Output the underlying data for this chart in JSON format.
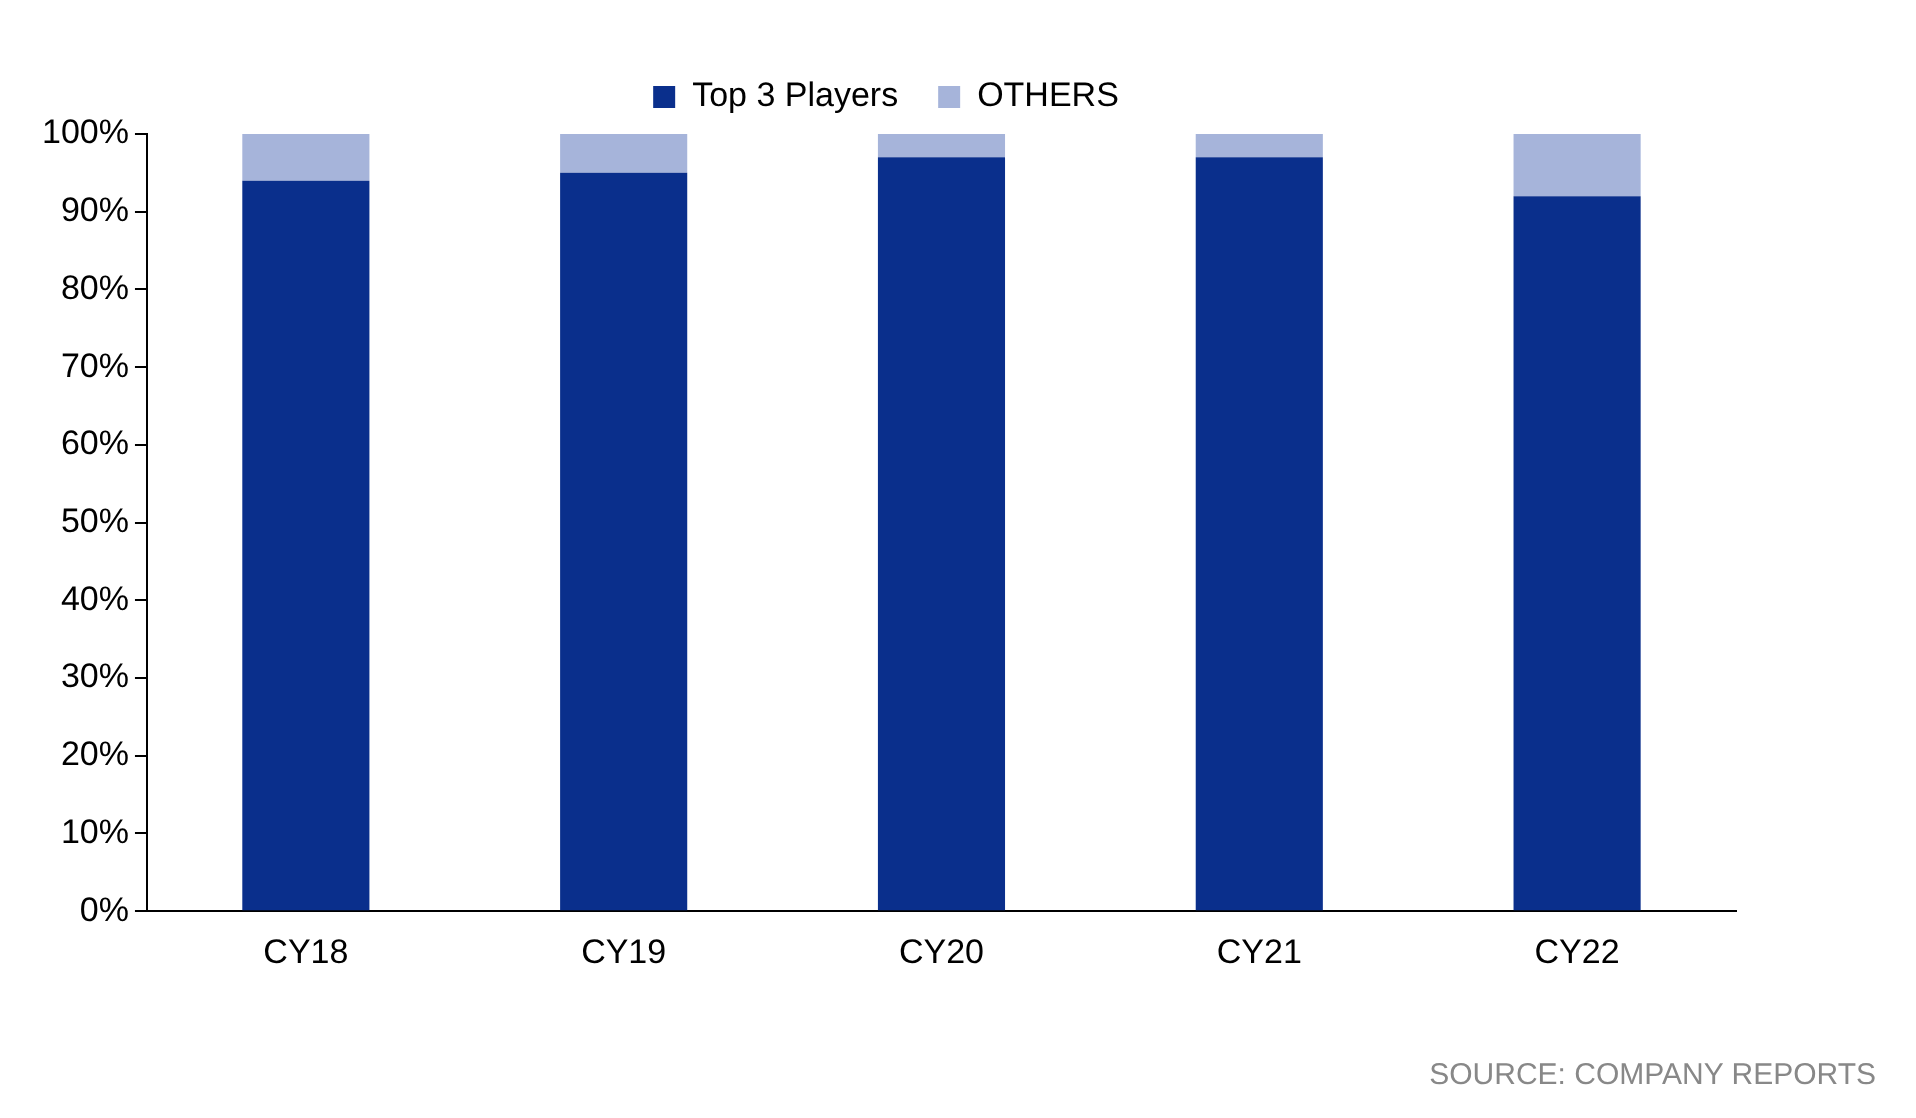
{
  "chart_data": {
    "type": "bar",
    "stacked": true,
    "categories": [
      "CY18",
      "CY19",
      "CY20",
      "CY21",
      "CY22"
    ],
    "series": [
      {
        "name": "Top 3 Players",
        "color": "#0a2f8c",
        "values": [
          94,
          95,
          97,
          97,
          92
        ]
      },
      {
        "name": "OTHERS",
        "color": "#a6b4da",
        "values": [
          6,
          5,
          3,
          3,
          8
        ]
      }
    ],
    "ylim": [
      0,
      100
    ],
    "yticks": [
      {
        "value": 0,
        "label": "0%"
      },
      {
        "value": 10,
        "label": "10%"
      },
      {
        "value": 20,
        "label": "20%"
      },
      {
        "value": 30,
        "label": "30%"
      },
      {
        "value": 40,
        "label": "40%"
      },
      {
        "value": 50,
        "label": "50%"
      },
      {
        "value": 60,
        "label": "60%"
      },
      {
        "value": 70,
        "label": "70%"
      },
      {
        "value": 80,
        "label": "80%"
      },
      {
        "value": 90,
        "label": "90%"
      },
      {
        "value": 100,
        "label": "100%"
      }
    ],
    "grid": false,
    "legend": "top",
    "annotations": [
      "SOURCE: COMPANY REPORTS"
    ]
  }
}
